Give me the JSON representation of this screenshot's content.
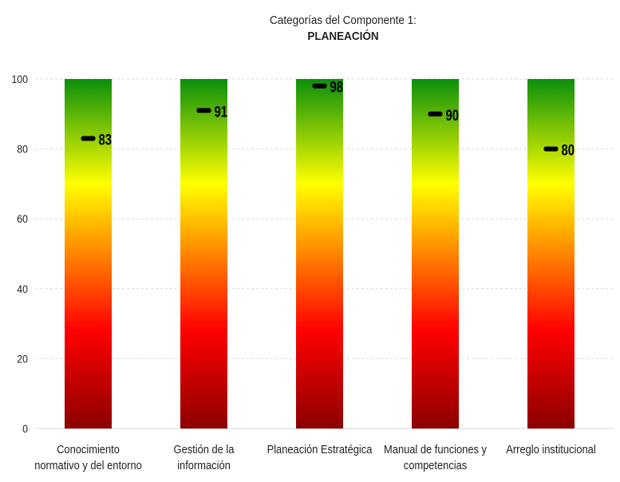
{
  "chart_data": {
    "type": "bar",
    "title": "Categorías del Componente 1:",
    "subtitle": "PLANEACIÓN",
    "xlabel": "",
    "ylabel": "",
    "ylim": [
      0,
      100
    ],
    "yticks": [
      0,
      20,
      40,
      60,
      80,
      100
    ],
    "grid": true,
    "legend": "none",
    "categories": [
      [
        "Conocimiento",
        "normativo y del entorno"
      ],
      [
        "Gestión de la",
        "información"
      ],
      [
        "Planeación Estratégica"
      ],
      [
        "Manual de funciones y",
        "competencias"
      ],
      [
        "Arreglo institucional"
      ]
    ],
    "bar_values": [
      100,
      100,
      100,
      100,
      100
    ],
    "series": [
      {
        "values": [
          83,
          91,
          98,
          90,
          80
        ]
      }
    ],
    "colors": {
      "gradient_top": "#0a8f0a",
      "gradient_upper": "#ffff00",
      "gradient_mid": "#ff0000",
      "gradient_bottom": "#8b0000",
      "marker": "#000000",
      "grid": "#d9d9d9",
      "text": "#222222"
    }
  }
}
